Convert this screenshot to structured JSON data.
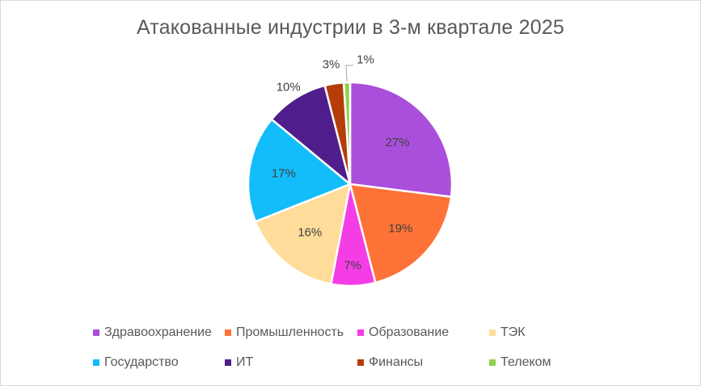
{
  "chart_data": {
    "type": "pie",
    "title": "Атакованные индустрии в 3-м квартале 2025",
    "legend_position": "bottom",
    "slices": [
      {
        "label": "Здравоохранение",
        "value": 27,
        "display": "27%",
        "color": "#aa4fdc"
      },
      {
        "label": "Промышленность",
        "value": 19,
        "display": "19%",
        "color": "#ff7238"
      },
      {
        "label": "Образование",
        "value": 7,
        "display": "7%",
        "color": "#f53de6"
      },
      {
        "label": "ТЭК",
        "value": 16,
        "display": "16%",
        "color": "#ffdc9a"
      },
      {
        "label": "Государство",
        "value": 17,
        "display": "17%",
        "color": "#13bdfa"
      },
      {
        "label": "ИТ",
        "value": 10,
        "display": "10%",
        "color": "#4f1e8c"
      },
      {
        "label": "Финансы",
        "value": 3,
        "display": "3%",
        "color": "#b53d0a"
      },
      {
        "label": "Телеком",
        "value": 1,
        "display": "1%",
        "color": "#8fd14f"
      }
    ]
  }
}
